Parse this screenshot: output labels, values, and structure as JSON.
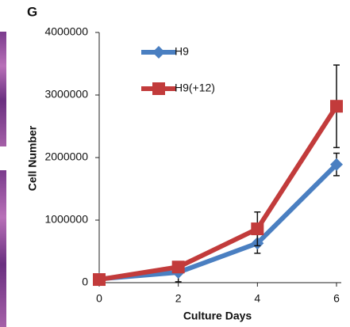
{
  "chart_data": {
    "type": "line",
    "panel_label": "G",
    "x_label": "Culture Days",
    "y_label": "Cell Number",
    "x": [
      0,
      2,
      4,
      6
    ],
    "series": [
      {
        "name": "H9",
        "color": "#4a7fc1",
        "marker": "diamond",
        "values": [
          60000,
          165000,
          630000,
          1890000
        ],
        "errors": [
          null,
          150000,
          160000,
          180000
        ]
      },
      {
        "name": "H9(+12)",
        "color": "#c23b3b",
        "marker": "square",
        "values": [
          50000,
          250000,
          860000,
          2820000
        ],
        "errors": [
          null,
          null,
          270000,
          660000
        ]
      }
    ],
    "xlim": [
      0,
      6
    ],
    "xticks": [
      0,
      2,
      4,
      6
    ],
    "ylim": [
      0,
      4000000
    ],
    "yticks": [
      0,
      1000000,
      2000000,
      3000000,
      4000000
    ],
    "grid": false
  }
}
